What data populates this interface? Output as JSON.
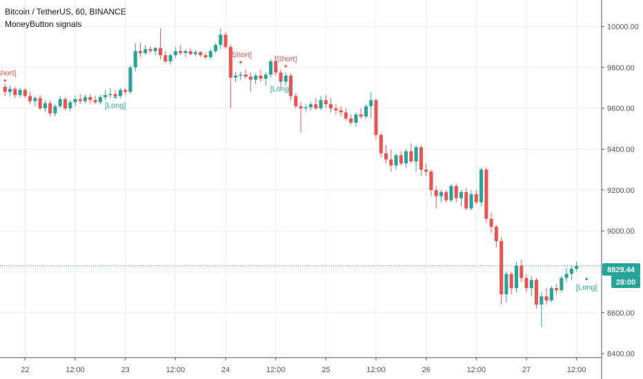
{
  "colors": {
    "up": "#26a69a",
    "down": "#ef5350",
    "grid": "#e9eef2",
    "axis_text": "#50535e",
    "price_line": "#26a69a",
    "background": "#ffffff"
  },
  "header": {
    "title": "Bitcoin / TetherUS, 60, BINANCE",
    "indicator": "MoneyButton signals"
  },
  "price_label": {
    "value": "8829.44",
    "countdown": "28:00"
  },
  "chart_data": {
    "type": "candlestick",
    "title": "Bitcoin / TetherUS, 60, BINANCE",
    "subtitle": "MoneyButton signals",
    "ylim": [
      8380,
      10130
    ],
    "xlim": [
      -1,
      119
    ],
    "y_ticks": [
      {
        "value": 8400,
        "label": "8400.00"
      },
      {
        "value": 8600,
        "label": "8600.00"
      },
      {
        "value": 8800,
        "label": "8800.00"
      },
      {
        "value": 9000,
        "label": "9000.00"
      },
      {
        "value": 9200,
        "label": "9200.00"
      },
      {
        "value": 9400,
        "label": "9400.00"
      },
      {
        "value": 9600,
        "label": "9600.00"
      },
      {
        "value": 9800,
        "label": "9800.00"
      },
      {
        "value": 10000,
        "label": "10000.00"
      }
    ],
    "x_ticks": [
      {
        "index": 4,
        "label": "22"
      },
      {
        "index": 14,
        "label": "12:00"
      },
      {
        "index": 24,
        "label": "23"
      },
      {
        "index": 34,
        "label": "12:00"
      },
      {
        "index": 44,
        "label": "24"
      },
      {
        "index": 54,
        "label": "12:00"
      },
      {
        "index": 64,
        "label": "25"
      },
      {
        "index": 74,
        "label": "12:00"
      },
      {
        "index": 84,
        "label": "26"
      },
      {
        "index": 94,
        "label": "12:00"
      },
      {
        "index": 104,
        "label": "27"
      },
      {
        "index": 114,
        "label": "12:00"
      }
    ],
    "last_price": 8829.44,
    "candles": [
      [
        9705,
        9720,
        9660,
        9680
      ],
      [
        9680,
        9710,
        9660,
        9695
      ],
      [
        9695,
        9705,
        9650,
        9665
      ],
      [
        9665,
        9700,
        9655,
        9690
      ],
      [
        9690,
        9700,
        9650,
        9660
      ],
      [
        9660,
        9680,
        9620,
        9635
      ],
      [
        9635,
        9660,
        9610,
        9650
      ],
      [
        9650,
        9665,
        9590,
        9600
      ],
      [
        9600,
        9640,
        9580,
        9625
      ],
      [
        9625,
        9640,
        9560,
        9575
      ],
      [
        9575,
        9620,
        9560,
        9610
      ],
      [
        9610,
        9660,
        9600,
        9645
      ],
      [
        9645,
        9655,
        9590,
        9600
      ],
      [
        9600,
        9640,
        9585,
        9630
      ],
      [
        9630,
        9660,
        9610,
        9645
      ],
      [
        9645,
        9670,
        9620,
        9635
      ],
      [
        9635,
        9665,
        9625,
        9655
      ],
      [
        9655,
        9670,
        9625,
        9640
      ],
      [
        9640,
        9660,
        9620,
        9630
      ],
      [
        9630,
        9665,
        9620,
        9655
      ],
      [
        9655,
        9690,
        9640,
        9665
      ],
      [
        9665,
        9700,
        9650,
        9670
      ],
      [
        9670,
        9690,
        9655,
        9660
      ],
      [
        9660,
        9700,
        9650,
        9690
      ],
      [
        9690,
        9700,
        9665,
        9680
      ],
      [
        9680,
        9810,
        9670,
        9800
      ],
      [
        9800,
        9920,
        9780,
        9880
      ],
      [
        9880,
        9920,
        9850,
        9870
      ],
      [
        9870,
        9910,
        9860,
        9890
      ],
      [
        9890,
        9905,
        9870,
        9880
      ],
      [
        9880,
        9900,
        9860,
        9895
      ],
      [
        9895,
        9990,
        9840,
        9860
      ],
      [
        9860,
        9880,
        9820,
        9830
      ],
      [
        9830,
        9870,
        9815,
        9860
      ],
      [
        9860,
        9900,
        9845,
        9880
      ],
      [
        9880,
        9910,
        9860,
        9870
      ],
      [
        9870,
        9890,
        9850,
        9880
      ],
      [
        9880,
        9895,
        9860,
        9865
      ],
      [
        9865,
        9885,
        9855,
        9875
      ],
      [
        9875,
        9880,
        9850,
        9860
      ],
      [
        9860,
        9875,
        9840,
        9850
      ],
      [
        9850,
        9890,
        9840,
        9880
      ],
      [
        9880,
        9920,
        9870,
        9910
      ],
      [
        9910,
        9990,
        9890,
        9960
      ],
      [
        9960,
        9975,
        9890,
        9900
      ],
      [
        9900,
        9910,
        9600,
        9750
      ],
      [
        9750,
        9780,
        9730,
        9760
      ],
      [
        9760,
        9780,
        9740,
        9765
      ],
      [
        9765,
        9790,
        9745,
        9755
      ],
      [
        9755,
        9775,
        9680,
        9740
      ],
      [
        9740,
        9770,
        9720,
        9760
      ],
      [
        9760,
        9790,
        9730,
        9745
      ],
      [
        9745,
        9775,
        9710,
        9765
      ],
      [
        9765,
        9840,
        9750,
        9830
      ],
      [
        9830,
        9850,
        9760,
        9775
      ],
      [
        9775,
        9790,
        9700,
        9730
      ],
      [
        9730,
        9775,
        9710,
        9760
      ],
      [
        9760,
        9770,
        9640,
        9660
      ],
      [
        9660,
        9675,
        9600,
        9610
      ],
      [
        9610,
        9630,
        9480,
        9600
      ],
      [
        9600,
        9620,
        9585,
        9605
      ],
      [
        9605,
        9630,
        9590,
        9620
      ],
      [
        9620,
        9650,
        9590,
        9600
      ],
      [
        9600,
        9660,
        9590,
        9640
      ],
      [
        9640,
        9665,
        9600,
        9620
      ],
      [
        9620,
        9650,
        9580,
        9600
      ],
      [
        9600,
        9620,
        9570,
        9590
      ],
      [
        9590,
        9610,
        9560,
        9580
      ],
      [
        9580,
        9600,
        9540,
        9550
      ],
      [
        9550,
        9570,
        9520,
        9530
      ],
      [
        9530,
        9580,
        9510,
        9570
      ],
      [
        9570,
        9600,
        9550,
        9560
      ],
      [
        9560,
        9620,
        9550,
        9610
      ],
      [
        9610,
        9680,
        9550,
        9640
      ],
      [
        9640,
        9650,
        9450,
        9470
      ],
      [
        9470,
        9480,
        9360,
        9380
      ],
      [
        9380,
        9420,
        9330,
        9350
      ],
      [
        9350,
        9400,
        9290,
        9320
      ],
      [
        9320,
        9380,
        9300,
        9370
      ],
      [
        9370,
        9390,
        9320,
        9330
      ],
      [
        9330,
        9400,
        9310,
        9390
      ],
      [
        9390,
        9430,
        9330,
        9340
      ],
      [
        9340,
        9420,
        9290,
        9410
      ],
      [
        9410,
        9420,
        9270,
        9300
      ],
      [
        9300,
        9330,
        9270,
        9290
      ],
      [
        9290,
        9300,
        9170,
        9200
      ],
      [
        9200,
        9220,
        9110,
        9170
      ],
      [
        9170,
        9200,
        9140,
        9190
      ],
      [
        9190,
        9200,
        9140,
        9150
      ],
      [
        9150,
        9230,
        9140,
        9220
      ],
      [
        9220,
        9230,
        9140,
        9160
      ],
      [
        9160,
        9200,
        9120,
        9190
      ],
      [
        9190,
        9210,
        9100,
        9110
      ],
      [
        9110,
        9200,
        9100,
        9180
      ],
      [
        9180,
        9200,
        9130,
        9140
      ],
      [
        9140,
        9310,
        9120,
        9300
      ],
      [
        9300,
        9310,
        9040,
        9060
      ],
      [
        9060,
        9090,
        8990,
        9020
      ],
      [
        9020,
        9030,
        8920,
        8950
      ],
      [
        8950,
        8970,
        8640,
        8690
      ],
      [
        8690,
        8800,
        8650,
        8790
      ],
      [
        8790,
        8800,
        8690,
        8720
      ],
      [
        8720,
        8850,
        8700,
        8830
      ],
      [
        8830,
        8860,
        8750,
        8770
      ],
      [
        8770,
        8790,
        8700,
        8720
      ],
      [
        8720,
        8780,
        8680,
        8760
      ],
      [
        8760,
        8770,
        8620,
        8640
      ],
      [
        8640,
        8700,
        8530,
        8680
      ],
      [
        8680,
        8720,
        8640,
        8660
      ],
      [
        8660,
        8730,
        8650,
        8720
      ],
      [
        8720,
        8740,
        8690,
        8710
      ],
      [
        8710,
        8780,
        8700,
        8770
      ],
      [
        8770,
        8820,
        8750,
        8790
      ],
      [
        8790,
        8830,
        8760,
        8815
      ],
      [
        8815,
        8850,
        8800,
        8829.44
      ]
    ],
    "signals": [
      {
        "index": 0,
        "label": "[Short]",
        "type": "short",
        "price": 9740
      },
      {
        "index": 22,
        "label": "[Long]",
        "type": "long",
        "price": 9650
      },
      {
        "index": 47,
        "label": "[Short]",
        "type": "short",
        "price": 9830
      },
      {
        "index": 56,
        "label": "[Short]",
        "type": "short",
        "price": 9810
      },
      {
        "index": 55,
        "label": "[Long]",
        "type": "long",
        "price": 9730
      },
      {
        "index": 116,
        "label": "[Long]",
        "type": "long",
        "price": 8760
      }
    ]
  }
}
